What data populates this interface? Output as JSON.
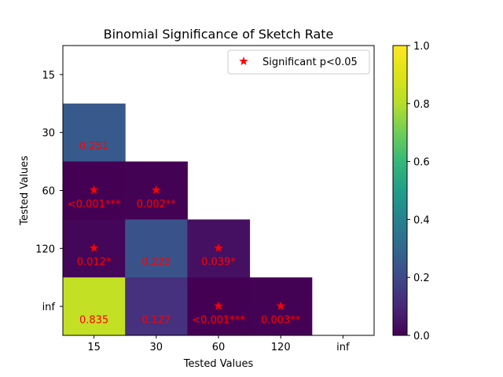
{
  "chart_data": {
    "type": "heatmap",
    "title": "Binomial Significance of Sketch Rate",
    "xlabel": "Tested Values",
    "ylabel": "Tested Values",
    "x_categories": [
      "15",
      "30",
      "60",
      "120",
      "inf"
    ],
    "y_categories": [
      "15",
      "30",
      "60",
      "120",
      "inf"
    ],
    "cells": [
      {
        "x": "15",
        "y": "30",
        "value": 0.251,
        "label": "0.251",
        "significant": false
      },
      {
        "x": "15",
        "y": "60",
        "value": 0.0005,
        "label": "<0.001***",
        "significant": true
      },
      {
        "x": "30",
        "y": "60",
        "value": 0.002,
        "label": "0.002**",
        "significant": true
      },
      {
        "x": "15",
        "y": "120",
        "value": 0.012,
        "label": "0.012*",
        "significant": true
      },
      {
        "x": "30",
        "y": "120",
        "value": 0.229,
        "label": "0.229",
        "significant": false
      },
      {
        "x": "60",
        "y": "120",
        "value": 0.039,
        "label": "0.039*",
        "significant": true
      },
      {
        "x": "15",
        "y": "inf",
        "value": 0.835,
        "label": "0.835",
        "significant": false
      },
      {
        "x": "30",
        "y": "inf",
        "value": 0.127,
        "label": "0.127",
        "significant": false
      },
      {
        "x": "60",
        "y": "inf",
        "value": 0.0005,
        "label": "<0.001***",
        "significant": true
      },
      {
        "x": "120",
        "y": "inf",
        "value": 0.003,
        "label": "0.003**",
        "significant": true
      }
    ],
    "legend": {
      "label": "Significant p<0.05",
      "marker": "star",
      "color": "#ff0000",
      "placement": "top-right"
    },
    "colorbar": {
      "colormap": "viridis",
      "range": [
        0.0,
        1.0
      ],
      "ticks": [
        "0.0",
        "0.2",
        "0.4",
        "0.6",
        "0.8",
        "1.0"
      ]
    },
    "grid": false
  }
}
